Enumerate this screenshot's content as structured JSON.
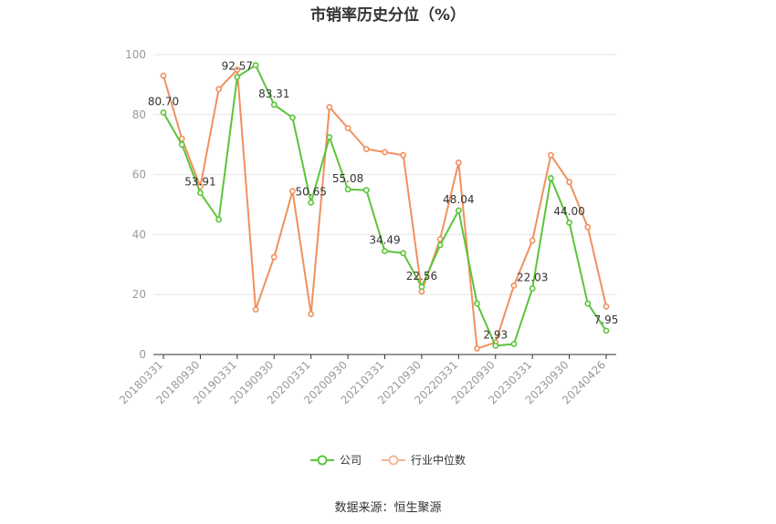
{
  "chart_data": {
    "type": "line",
    "title": "市销率历史分位（%）",
    "xlabel": "",
    "ylabel": "",
    "ylim": [
      0,
      100
    ],
    "yticks": [
      0,
      20,
      40,
      60,
      80,
      100
    ],
    "x": [
      "20180331",
      "20180630",
      "20180930",
      "20181231",
      "20190331",
      "20190630",
      "20190930",
      "20191231",
      "20200331",
      "20200630",
      "20200930",
      "20201231",
      "20210331",
      "20210630",
      "20210930",
      "20211231",
      "20220331",
      "20220630",
      "20220930",
      "20221231",
      "20230331",
      "20230630",
      "20230930",
      "20231231",
      "20240426"
    ],
    "xtick_labels": [
      "20180331",
      "20180930",
      "20190331",
      "20190930",
      "20200331",
      "20200930",
      "20210331",
      "20210930",
      "20220331",
      "20220930",
      "20230331",
      "20230930",
      "20240426"
    ],
    "series": [
      {
        "name": "公司",
        "color": "#5cc43a",
        "values": [
          80.7,
          70.0,
          53.91,
          45.0,
          92.57,
          96.5,
          83.31,
          79.0,
          50.65,
          72.5,
          55.08,
          54.8,
          34.49,
          33.8,
          22.56,
          36.5,
          48.04,
          17.0,
          2.93,
          3.5,
          22.03,
          58.8,
          44.0,
          17.0,
          7.95
        ],
        "data_labels": [
          {
            "index": 0,
            "text": "80.70"
          },
          {
            "index": 2,
            "text": "53.91"
          },
          {
            "index": 4,
            "text": "92.57"
          },
          {
            "index": 6,
            "text": "83.31"
          },
          {
            "index": 8,
            "text": "50.65"
          },
          {
            "index": 10,
            "text": "55.08"
          },
          {
            "index": 12,
            "text": "34.49"
          },
          {
            "index": 14,
            "text": "22.56"
          },
          {
            "index": 16,
            "text": "48.04"
          },
          {
            "index": 18,
            "text": "2.93"
          },
          {
            "index": 20,
            "text": "22.03"
          },
          {
            "index": 22,
            "text": "44.00"
          },
          {
            "index": 24,
            "text": "7.95"
          }
        ]
      },
      {
        "name": "行业中位数",
        "color": "#f0905e",
        "values": [
          93.0,
          72.0,
          56.0,
          88.5,
          95.0,
          15.0,
          32.5,
          54.5,
          13.5,
          82.5,
          75.5,
          68.5,
          67.5,
          66.5,
          21.0,
          38.5,
          64.0,
          2.0,
          4.0,
          23.0,
          38.0,
          66.5,
          57.5,
          42.5,
          16.0
        ]
      }
    ],
    "grid": true,
    "legend_position": "bottom-center",
    "source": "数据来源：恒生聚源"
  }
}
